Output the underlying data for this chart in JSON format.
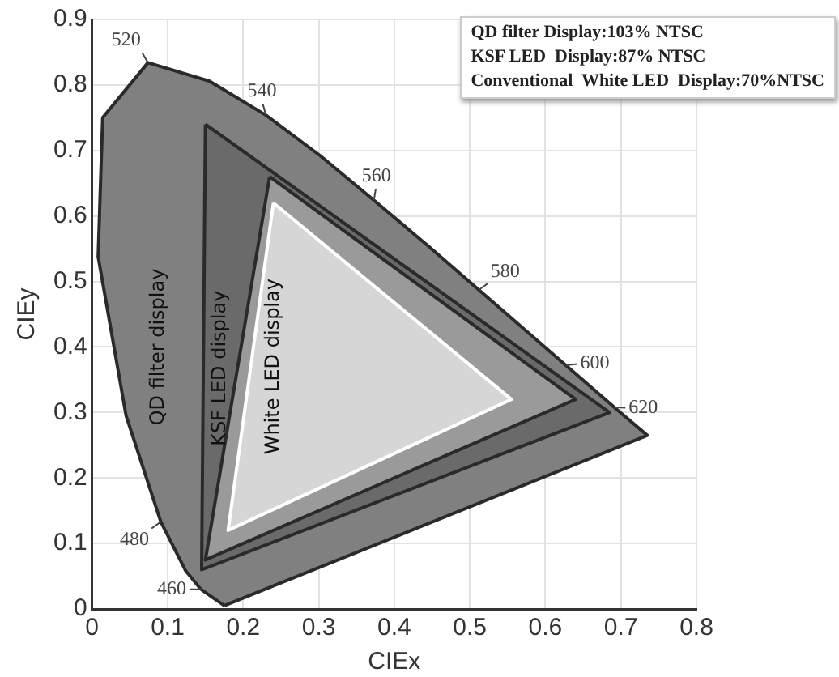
{
  "chart_data": {
    "type": "area",
    "xlabel": "CIEx",
    "ylabel": "CIEy",
    "xlim": [
      0,
      0.8
    ],
    "ylim": [
      0,
      0.9
    ],
    "xticks": [
      0,
      0.1,
      0.2,
      0.3,
      0.4,
      0.5,
      0.6,
      0.7,
      0.8
    ],
    "yticks": [
      0,
      0.1,
      0.2,
      0.3,
      0.4,
      0.5,
      0.6,
      0.7,
      0.8,
      0.9
    ],
    "grid": true,
    "legend": false,
    "marker": "none",
    "series": [
      {
        "color": "#808080",
        "x": [
          0.175,
          0.144,
          0.124,
          0.091,
          0.045,
          0.008,
          0.014,
          0.074,
          0.155,
          0.23,
          0.302,
          0.373,
          0.444,
          0.512,
          0.627,
          0.691,
          0.735,
          0.175
        ],
        "values": [
          0.005,
          0.03,
          0.058,
          0.133,
          0.295,
          0.538,
          0.75,
          0.834,
          0.806,
          0.754,
          0.692,
          0.624,
          0.555,
          0.487,
          0.372,
          0.308,
          0.265,
          0.005
        ]
      },
      {
        "name": "QD filter display",
        "color": "#6a6a6a",
        "x": [
          0.15,
          0.685,
          0.145,
          0.15
        ],
        "values": [
          0.74,
          0.3,
          0.06,
          0.74
        ]
      },
      {
        "name": "KSF LED display",
        "color": "#9a9a9a",
        "x": [
          0.235,
          0.64,
          0.15,
          0.235
        ],
        "values": [
          0.66,
          0.32,
          0.075,
          0.66
        ]
      },
      {
        "name": "White LED display",
        "color": "#d6d6d6",
        "x": [
          0.24,
          0.555,
          0.18,
          0.24
        ],
        "values": [
          0.62,
          0.32,
          0.12,
          0.62
        ]
      }
    ],
    "annotations": [
      "QD filter Display:103% NTSC",
      "KSF LED  Display:87% NTSC",
      "Conventional  White LED  Display:70%NTSC",
      {
        "text": "460",
        "x": 0.144,
        "y": 0.03
      },
      {
        "text": "480",
        "x": 0.091,
        "y": 0.133
      },
      {
        "text": "520",
        "x": 0.074,
        "y": 0.834
      },
      {
        "text": "540",
        "x": 0.23,
        "y": 0.754
      },
      {
        "text": "560",
        "x": 0.373,
        "y": 0.624
      },
      {
        "text": "580",
        "x": 0.512,
        "y": 0.487
      },
      {
        "text": "600",
        "x": 0.627,
        "y": 0.372
      },
      {
        "text": "620",
        "x": 0.691,
        "y": 0.308
      }
    ]
  }
}
